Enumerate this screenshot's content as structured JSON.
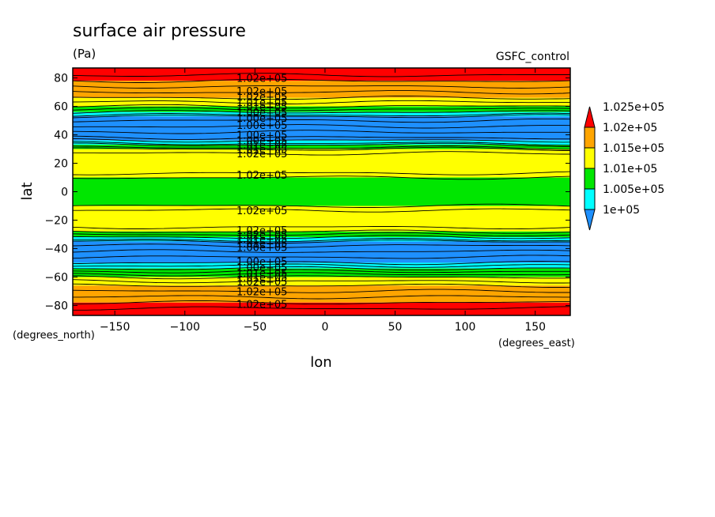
{
  "chart_data": {
    "type": "heatmap",
    "title": "surface air pressure",
    "units": "(Pa)",
    "dataset": "GSFC_control",
    "xlabel": "lon",
    "ylabel": "lat",
    "xunits": "(degrees_east)",
    "yunits": "(degrees_north)",
    "xlim": [
      -180,
      175
    ],
    "ylim": [
      -87,
      87
    ],
    "x_ticks": [
      -150,
      -100,
      -50,
      0,
      50,
      100,
      150
    ],
    "x_tick_labels": [
      "−150",
      "−100",
      "−50",
      "0",
      "50",
      "100",
      "150"
    ],
    "y_ticks": [
      -80,
      -60,
      -40,
      -20,
      0,
      20,
      40,
      60,
      80
    ],
    "y_tick_labels": [
      "−80",
      "−60",
      "−40",
      "−20",
      "0",
      "20",
      "40",
      "60",
      "80"
    ],
    "colorbar": {
      "levels": [
        "1e+05",
        "1.005e+05",
        "1.01e+05",
        "1.015e+05",
        "1.02e+05",
        "1.025e+05"
      ],
      "colors": [
        "#1e90ff",
        "#00ffff",
        "#00e600",
        "#ffff00",
        "#ffa500",
        "#ff0000"
      ]
    },
    "bands": [
      {
        "lat": [
          78,
          87
        ],
        "value": 102600,
        "color": "#ff0000"
      },
      {
        "lat": [
          66,
          78
        ],
        "value": 102200,
        "color": "#ffa500"
      },
      {
        "lat": [
          60,
          66
        ],
        "value": 101700,
        "color": "#ffff00"
      },
      {
        "lat": [
          56,
          60
        ],
        "value": 101200,
        "color": "#00e600"
      },
      {
        "lat": [
          53,
          56
        ],
        "value": 100700,
        "color": "#00ffff"
      },
      {
        "lat": [
          36,
          53
        ],
        "value": 100200,
        "color": "#1e90ff"
      },
      {
        "lat": [
          33,
          36
        ],
        "value": 100700,
        "color": "#00ffff"
      },
      {
        "lat": [
          30,
          33
        ],
        "value": 101200,
        "color": "#00e600"
      },
      {
        "lat": [
          10,
          30
        ],
        "value": 101700,
        "color": "#ffff00"
      },
      {
        "lat": [
          -10,
          10
        ],
        "value": 101200,
        "color": "#00e600"
      },
      {
        "lat": [
          -28,
          -10
        ],
        "value": 101700,
        "color": "#ffff00"
      },
      {
        "lat": [
          -32,
          -28
        ],
        "value": 101200,
        "color": "#00e600"
      },
      {
        "lat": [
          -35,
          -32
        ],
        "value": 100700,
        "color": "#00ffff"
      },
      {
        "lat": [
          -50,
          -35
        ],
        "value": 100200,
        "color": "#1e90ff"
      },
      {
        "lat": [
          -54,
          -50
        ],
        "value": 100700,
        "color": "#00ffff"
      },
      {
        "lat": [
          -60,
          -54
        ],
        "value": 101200,
        "color": "#00e600"
      },
      {
        "lat": [
          -66,
          -60
        ],
        "value": 101700,
        "color": "#ffff00"
      },
      {
        "lat": [
          -78,
          -66
        ],
        "value": 102200,
        "color": "#ffa500"
      },
      {
        "lat": [
          -87,
          -78
        ],
        "value": 102600,
        "color": "#ff0000"
      }
    ],
    "contour_lats": [
      82,
      78,
      74,
      70,
      66,
      63,
      60,
      58,
      56,
      54,
      53,
      50,
      46,
      42,
      38,
      36,
      34,
      33,
      31,
      30,
      27,
      13,
      10,
      -10,
      -13,
      -25,
      -28,
      -30,
      -32,
      -34,
      -35,
      -38,
      -42,
      -46,
      -50,
      -52,
      -54,
      -56,
      -58,
      -60,
      -63,
      -66,
      -70,
      -74,
      -78,
      -82
    ],
    "contour_labels": [
      {
        "lon": -45,
        "lat": 80,
        "text": "1.02e+05"
      },
      {
        "lon": -45,
        "lat": 71,
        "text": "1.02e+05"
      },
      {
        "lon": -45,
        "lat": 67,
        "text": "1.02e+05"
      },
      {
        "lon": -45,
        "lat": 63,
        "text": "1.01e+05"
      },
      {
        "lon": -45,
        "lat": 60,
        "text": "1.01e+05"
      },
      {
        "lon": -45,
        "lat": 56,
        "text": "1.00e+05"
      },
      {
        "lon": -45,
        "lat": 52,
        "text": "1.00e+05"
      },
      {
        "lon": -45,
        "lat": 47,
        "text": "1.00e+05"
      },
      {
        "lon": -45,
        "lat": 40,
        "text": "1.00e+05"
      },
      {
        "lon": -45,
        "lat": 36,
        "text": "1.00e+05"
      },
      {
        "lon": -45,
        "lat": 33,
        "text": "1.01e+05"
      },
      {
        "lon": -45,
        "lat": 30,
        "text": "1.01e+05"
      },
      {
        "lon": -45,
        "lat": 27,
        "text": "1.02e+05"
      },
      {
        "lon": -45,
        "lat": 12,
        "text": "1.02e+05"
      },
      {
        "lon": -45,
        "lat": -13,
        "text": "1.02e+05"
      },
      {
        "lon": -45,
        "lat": -27,
        "text": "1.02e+05"
      },
      {
        "lon": -45,
        "lat": -30,
        "text": "1.02e+05"
      },
      {
        "lon": -45,
        "lat": -33,
        "text": "1.01e+05"
      },
      {
        "lon": -45,
        "lat": -36,
        "text": "1.01e+05"
      },
      {
        "lon": -45,
        "lat": -39,
        "text": "1.00e+05"
      },
      {
        "lon": -45,
        "lat": -49,
        "text": "1.00e+05"
      },
      {
        "lon": -45,
        "lat": -53,
        "text": "1.00e+05"
      },
      {
        "lon": -45,
        "lat": -57,
        "text": "1.01e+05"
      },
      {
        "lon": -45,
        "lat": -60,
        "text": "1.01e+05"
      },
      {
        "lon": -45,
        "lat": -63,
        "text": "1.02e+05"
      },
      {
        "lon": -45,
        "lat": -70,
        "text": "1.02e+05"
      },
      {
        "lon": -45,
        "lat": -79,
        "text": "1.02e+05"
      }
    ],
    "grid": false,
    "legend": "right"
  }
}
